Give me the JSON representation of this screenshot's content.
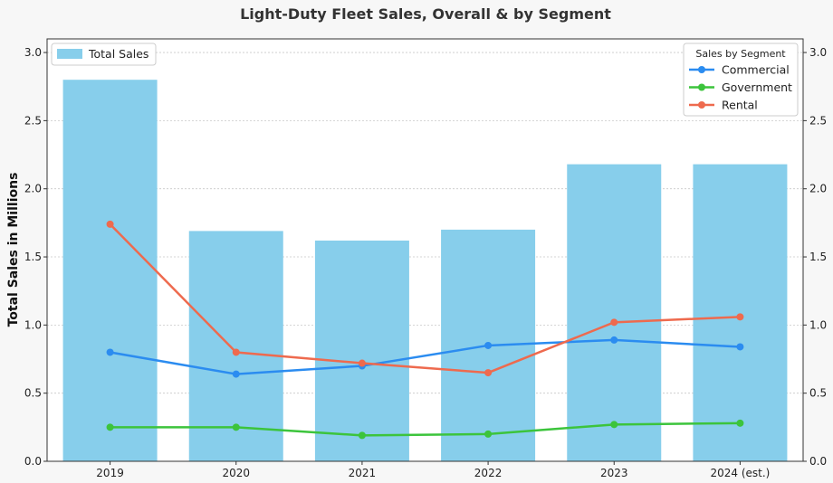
{
  "chart_data": {
    "type": "bar",
    "title": "Light-Duty Fleet Sales, Overall & by Segment",
    "ylabel": "Total Sales in Millions",
    "xlabel": "",
    "categories": [
      "2019",
      "2020",
      "2021",
      "2022",
      "2023",
      "2024 (est.)"
    ],
    "ylim": [
      0,
      3.1
    ],
    "yticks": [
      "0.0",
      "0.5",
      "1.0",
      "1.5",
      "2.0",
      "2.5",
      "3.0"
    ],
    "grid": true,
    "bars": {
      "name": "Total Sales",
      "color": "#87ceeb",
      "values": [
        2.8,
        1.69,
        1.62,
        1.7,
        2.18,
        2.18
      ]
    },
    "bar_legend_placement": "top-left",
    "lines_legend": {
      "title": "Sales by Segment",
      "placement": "top-right"
    },
    "series": [
      {
        "name": "Commercial",
        "color": "#2b8cf0",
        "values": [
          0.8,
          0.64,
          0.7,
          0.85,
          0.89,
          0.84
        ]
      },
      {
        "name": "Government",
        "color": "#3cc43c",
        "values": [
          0.25,
          0.25,
          0.19,
          0.2,
          0.27,
          0.28
        ]
      },
      {
        "name": "Rental",
        "color": "#ee6a4e",
        "values": [
          1.74,
          0.8,
          0.72,
          0.65,
          1.02,
          1.06
        ]
      }
    ]
  }
}
